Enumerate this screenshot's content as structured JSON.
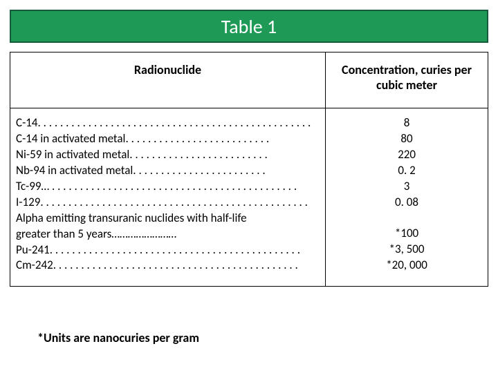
{
  "colors": {
    "title_bg": "#1f9a56",
    "title_border": "#145b39",
    "text": "#000000"
  },
  "title": "Table 1",
  "headers": {
    "left": "Radionuclide",
    "right": "Concentration, curies per cubic meter"
  },
  "rows": [
    {
      "label": "C-14. . . . . . . . . . . . . . . . . . . . . . . . . . . . . . . . . . . . . . . . . . . . . . . . .",
      "value": "8"
    },
    {
      "label": "C-14 in activated metal. . . . . . . . . . . . . . . . . . . . . . . . . .",
      "value": "80"
    },
    {
      "label": "Ni-59 in activated metal. . . . . . . . . . . . . . . . . . . . . . . . .",
      "value": "220"
    },
    {
      "label": "Nb-94 in activated metal. . . . . . . . . . . . . . . . . . . . . . . .",
      "value": "0. 2"
    },
    {
      "label": "Tc-99… . . . . . . . . . . . . . . . . . . . . . . . . . . . . . . . . . . . . . . . . . . . .",
      "value": "3"
    },
    {
      "label": "I-129. . . . . . . . . . . . . . . . . . . . . . . . . . . . . . . . . . . . . . . . . . . . . . . .",
      "value": "0. 08"
    },
    {
      "label": "Alpha emitting transuranic nuclides with half-life",
      "value": ""
    },
    {
      "label": "greater than 5 years……………………",
      "value": "*100"
    },
    {
      "label": "Pu-241. . . . . . . . . . . . . . . . . . . . . . . . . . . . . . . . . . . . . . . . . . . . .",
      "value": "*3, 500"
    },
    {
      "label": "Cm-242. . . . . . . . . . . . . . . . . . . . . . . . . . . . . . . . . . . . . . . . . . . .",
      "value": "*20, 000"
    }
  ],
  "gap_before_value_index": 7,
  "footnote": "*Units are nanocuries per gram"
}
